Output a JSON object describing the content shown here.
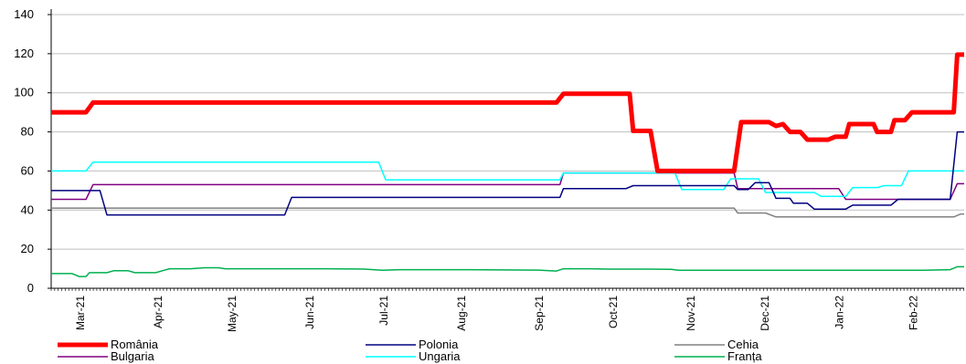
{
  "chart_data": {
    "type": "line",
    "yticks": [
      0,
      20,
      40,
      60,
      80,
      100,
      120,
      140
    ],
    "ylim": [
      0,
      140
    ],
    "xlim": [
      0,
      254
    ],
    "xticks": [
      {
        "label": "Mar-21",
        "x": 7
      },
      {
        "label": "Apr-21",
        "x": 30
      },
      {
        "label": "May-21",
        "x": 52
      },
      {
        "label": "Jun-21",
        "x": 75
      },
      {
        "label": "Jul-21",
        "x": 97
      },
      {
        "label": "Aug-21",
        "x": 120
      },
      {
        "label": "Sep-21",
        "x": 143
      },
      {
        "label": "Oct-21",
        "x": 165
      },
      {
        "label": "Nov-21",
        "x": 188
      },
      {
        "label": "Dec-21",
        "x": 210
      },
      {
        "label": "Jan-22",
        "x": 232
      },
      {
        "label": "Feb-22",
        "x": 254
      }
    ],
    "grid": true,
    "legend_position": "bottom",
    "series": [
      {
        "name": "România",
        "color": "#ff0000",
        "width": 5,
        "points": [
          [
            0,
            90
          ],
          [
            10,
            90
          ],
          [
            12,
            95
          ],
          [
            145,
            95
          ],
          [
            147,
            99.5
          ],
          [
            166,
            99.5
          ],
          [
            167,
            80.5
          ],
          [
            172,
            80.5
          ],
          [
            174,
            60
          ],
          [
            196,
            60
          ],
          [
            198,
            85
          ],
          [
            206,
            85
          ],
          [
            208,
            83
          ],
          [
            210,
            84
          ],
          [
            212,
            80
          ],
          [
            215,
            80
          ],
          [
            217,
            76
          ],
          [
            223,
            76
          ],
          [
            225,
            77.5
          ],
          [
            228,
            77.5
          ],
          [
            229,
            84
          ],
          [
            236,
            84
          ],
          [
            237,
            80
          ],
          [
            241,
            80
          ],
          [
            242,
            86
          ],
          [
            245,
            86
          ],
          [
            247,
            90
          ],
          [
            259,
            90
          ],
          [
            260,
            119.5
          ],
          [
            262,
            119.5
          ]
        ]
      },
      {
        "name": "Polonia",
        "color": "#000080",
        "width": 1.5,
        "points": [
          [
            0,
            50
          ],
          [
            14,
            50
          ],
          [
            16,
            37.5
          ],
          [
            67,
            37.5
          ],
          [
            69,
            46.5
          ],
          [
            146,
            46.5
          ],
          [
            147,
            51
          ],
          [
            165,
            51
          ],
          [
            167,
            52.5
          ],
          [
            196,
            52.5
          ],
          [
            197,
            50.5
          ],
          [
            200,
            50.5
          ],
          [
            202,
            54
          ],
          [
            206,
            54
          ],
          [
            208,
            46
          ],
          [
            212,
            46
          ],
          [
            213,
            43.5
          ],
          [
            217,
            43.5
          ],
          [
            219,
            40.5
          ],
          [
            228,
            40.5
          ],
          [
            230,
            42.5
          ],
          [
            241,
            42.5
          ],
          [
            243,
            45.5
          ],
          [
            258,
            45.5
          ],
          [
            260,
            80
          ],
          [
            262,
            80
          ]
        ]
      },
      {
        "name": "Cehia",
        "color": "#808080",
        "width": 1.5,
        "points": [
          [
            0,
            41
          ],
          [
            196,
            41
          ],
          [
            197,
            38.5
          ],
          [
            205,
            38.5
          ],
          [
            208,
            36.5
          ],
          [
            259,
            36.5
          ],
          [
            261,
            38
          ],
          [
            262,
            38
          ]
        ]
      },
      {
        "name": "Bulgaria",
        "color": "#800080",
        "width": 1.5,
        "points": [
          [
            0,
            45.5
          ],
          [
            10,
            45.5
          ],
          [
            12,
            53
          ],
          [
            146,
            53
          ],
          [
            147,
            59
          ],
          [
            196,
            59
          ],
          [
            197,
            51
          ],
          [
            226,
            51
          ],
          [
            228,
            45.5
          ],
          [
            258,
            45.5
          ],
          [
            260,
            53.5
          ],
          [
            262,
            53.5
          ]
        ]
      },
      {
        "name": "Ungaria",
        "color": "#00ffff",
        "width": 1.5,
        "points": [
          [
            0,
            60
          ],
          [
            10,
            60
          ],
          [
            12,
            64.5
          ],
          [
            94,
            64.5
          ],
          [
            96,
            55.5
          ],
          [
            146,
            55.5
          ],
          [
            147,
            59
          ],
          [
            179,
            59
          ],
          [
            181,
            50.5
          ],
          [
            193,
            50.5
          ],
          [
            195,
            56
          ],
          [
            203,
            56
          ],
          [
            205,
            49
          ],
          [
            219,
            49
          ],
          [
            221,
            47
          ],
          [
            228,
            47
          ],
          [
            230,
            51.5
          ],
          [
            237,
            51.5
          ],
          [
            239,
            52.5
          ],
          [
            244,
            52.5
          ],
          [
            246,
            60
          ],
          [
            262,
            60
          ]
        ]
      },
      {
        "name": "Franța",
        "color": "#00b050",
        "width": 1.5,
        "points": [
          [
            0,
            7.5
          ],
          [
            6,
            7.5
          ],
          [
            8,
            6
          ],
          [
            10,
            6
          ],
          [
            11,
            8
          ],
          [
            16,
            8
          ],
          [
            18,
            9
          ],
          [
            22,
            9
          ],
          [
            24,
            8
          ],
          [
            30,
            8
          ],
          [
            32,
            9
          ],
          [
            34,
            10
          ],
          [
            40,
            10
          ],
          [
            44,
            10.5
          ],
          [
            48,
            10.5
          ],
          [
            50,
            10
          ],
          [
            70,
            10
          ],
          [
            80,
            10
          ],
          [
            90,
            9.8
          ],
          [
            95,
            9.2
          ],
          [
            100,
            9.5
          ],
          [
            110,
            9.5
          ],
          [
            120,
            9.5
          ],
          [
            140,
            9.3
          ],
          [
            145,
            8.8
          ],
          [
            147,
            10
          ],
          [
            155,
            10
          ],
          [
            160,
            9.8
          ],
          [
            172,
            9.8
          ],
          [
            178,
            9.7
          ],
          [
            180,
            9.2
          ],
          [
            250,
            9.2
          ],
          [
            258,
            9.5
          ],
          [
            260,
            11
          ],
          [
            262,
            11
          ]
        ]
      }
    ]
  }
}
